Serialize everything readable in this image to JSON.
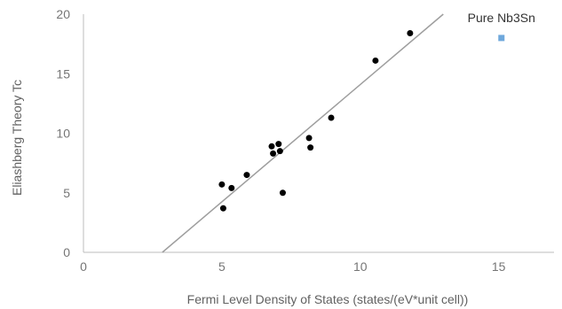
{
  "chart_data": {
    "type": "scatter",
    "title": "",
    "xlabel": "Fermi Level Density of States (states/(eV*unit cell))",
    "ylabel": "Eliashberg Theory Tc",
    "xlim": [
      0,
      17
    ],
    "ylim": [
      0,
      20
    ],
    "x_ticks": [
      0,
      5,
      10,
      15
    ],
    "y_ticks": [
      0,
      5,
      10,
      15,
      20
    ],
    "grid": false,
    "legend": "none",
    "series": [
      {
        "color": "#000000",
        "marker": "circle",
        "points": [
          {
            "x": 5.0,
            "y": 5.7
          },
          {
            "x": 5.05,
            "y": 3.7
          },
          {
            "x": 5.35,
            "y": 5.4
          },
          {
            "x": 5.9,
            "y": 6.5
          },
          {
            "x": 6.8,
            "y": 8.9
          },
          {
            "x": 6.85,
            "y": 8.3
          },
          {
            "x": 7.05,
            "y": 9.1
          },
          {
            "x": 7.1,
            "y": 8.5
          },
          {
            "x": 7.2,
            "y": 5.0
          },
          {
            "x": 8.15,
            "y": 9.6
          },
          {
            "x": 8.2,
            "y": 8.8
          },
          {
            "x": 8.95,
            "y": 11.3
          },
          {
            "x": 10.55,
            "y": 16.1
          },
          {
            "x": 11.8,
            "y": 18.4
          }
        ]
      },
      {
        "name": "Pure Nb3Sn",
        "color": "#6fa8dc",
        "marker": "square",
        "points": [
          {
            "x": 15.1,
            "y": 18.0
          }
        ]
      }
    ],
    "trendline": {
      "color": "#9e9e9e",
      "from": {
        "x": 2.85,
        "y": 0
      },
      "to": {
        "x": 13.0,
        "y": 20
      }
    },
    "annotations": [
      {
        "text": "Pure Nb3Sn",
        "x": 15.1,
        "y": 19.7
      }
    ]
  }
}
